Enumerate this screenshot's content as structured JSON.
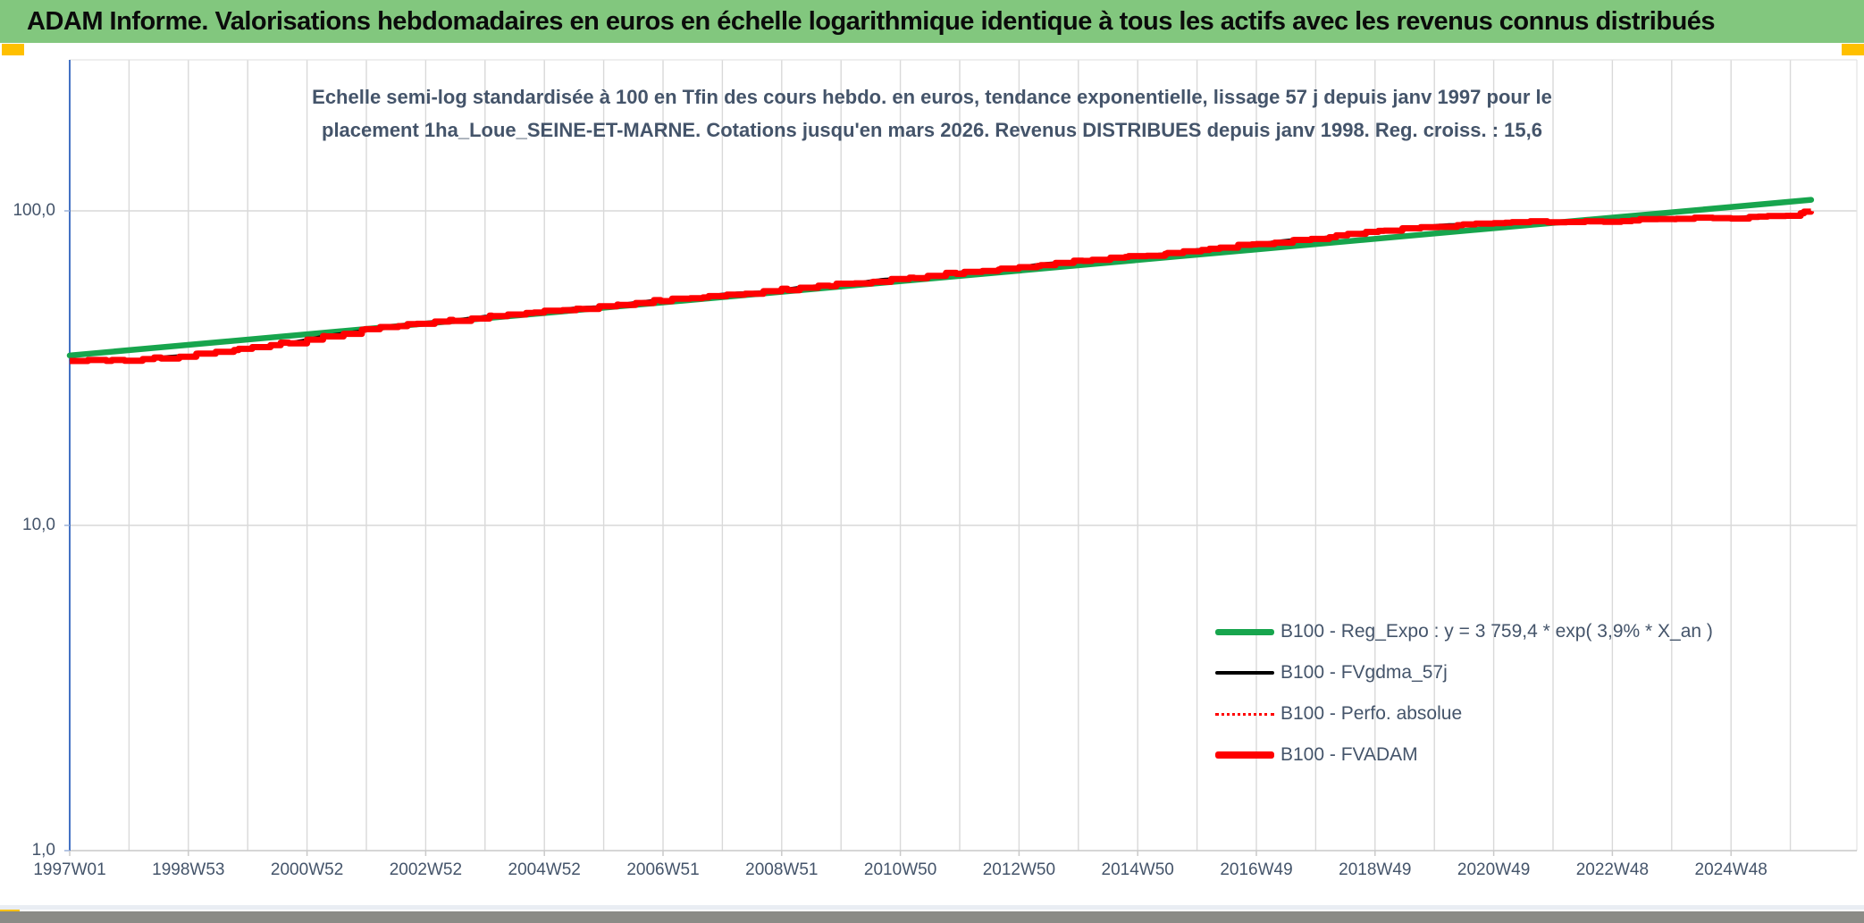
{
  "header": {
    "title": "ADAM Informe. Valorisations hebdomadaires en euros en échelle logarithmique identique à tous les actifs avec les revenus connus distribués"
  },
  "chart": {
    "title_line1": "Echelle semi-log standardisée à 100 en Tfin des cours hebdo. en euros, tendance exponentielle, lissage 57 j depuis janv 1997 pour le",
    "title_line2": "placement 1ha_Loue_SEINE-ET-MARNE. Cotations jusqu'en mars 2026. Revenus DISTRIBUES depuis janv 1998. Reg. croiss. : 15,6"
  },
  "chart_data": {
    "type": "line",
    "title": "Echelle semi-log standardisée à 100 en Tfin des cours hebdo. en euros, tendance exponentielle, lissage 57 j depuis janv 1997 pour le placement 1ha_Loue_SEINE-ET-MARNE. Cotations jusqu'en mars 2026. Revenus DISTRIBUES depuis janv 1998. Reg. croiss. : 15,6",
    "x_axis": {
      "tick_labels": [
        "1997W01",
        "1998W53",
        "2000W52",
        "2002W52",
        "2004W52",
        "2006W51",
        "2008W51",
        "2010W50",
        "2012W50",
        "2014W50",
        "2016W49",
        "2018W49",
        "2020W49",
        "2022W48",
        "2024W48"
      ],
      "tick_years": [
        1997,
        1999,
        2001,
        2003,
        2005,
        2007,
        2009,
        2011,
        2013,
        2015,
        2017,
        2019,
        2021,
        2023,
        2025
      ],
      "start_year": 1997.0,
      "end_year": 2026.35,
      "gridlines": "yearly"
    },
    "y_axis": {
      "scale": "log10",
      "tick_labels": [
        "100,0",
        "10,0",
        "1,0"
      ],
      "tick_values": [
        100,
        10,
        1
      ],
      "range": [
        1,
        300
      ]
    },
    "legend_position": "inside-right-bottom",
    "series": [
      {
        "name": "B100 - Reg_Expo : y = 3 759,4 * exp( 3,9% *  X_an )",
        "color": "#17A54D",
        "style": "solid-thick",
        "model": "exponential_trend",
        "growth_rate_pct_per_year": 3.9,
        "start_value_1997": 34.7,
        "end_value_2026": 108.4
      },
      {
        "name": "B100 - FVgdma_57j",
        "color": "#000000",
        "style": "solid-thin",
        "note": "57-day moving average, overlaps FVADAM curve"
      },
      {
        "name": "B100 - Perfo. absolue",
        "color": "#FF0000",
        "style": "dotted",
        "note": "overlaps FVADAM curve (revenues distributed)"
      },
      {
        "name": "B100 - FVADAM",
        "color": "#FF0000",
        "style": "solid-thick",
        "years": [
          1997,
          1998,
          1999,
          2000,
          2001,
          2002,
          2003,
          2004,
          2005,
          2006,
          2007,
          2008,
          2009,
          2010,
          2011,
          2012,
          2013,
          2014,
          2015,
          2016,
          2017,
          2018,
          2019,
          2020,
          2021,
          2022,
          2023,
          2024,
          2025,
          2026
        ],
        "values": [
          33.2,
          33.5,
          34.7,
          36.5,
          39.0,
          41.9,
          44.2,
          46.0,
          47.9,
          49.9,
          52.0,
          54.1,
          56.2,
          58.6,
          61.0,
          63.6,
          66.4,
          69.3,
          72.0,
          75.0,
          78.4,
          82.1,
          86.0,
          89.5,
          91.6,
          92.2,
          93.0,
          94.2,
          95.3,
          96.8
        ],
        "final_value_mars_2026": 100.0
      }
    ]
  },
  "colors": {
    "header_green": "#82C77E",
    "accent_yellow": "#FFC000",
    "text_dark": "#44546A",
    "grid": "#D9D9D9",
    "y_axis_line": "#4472C4",
    "green_line": "#17A54D",
    "red_line": "#FF0000",
    "bottom_strip": "#8B8B86"
  }
}
